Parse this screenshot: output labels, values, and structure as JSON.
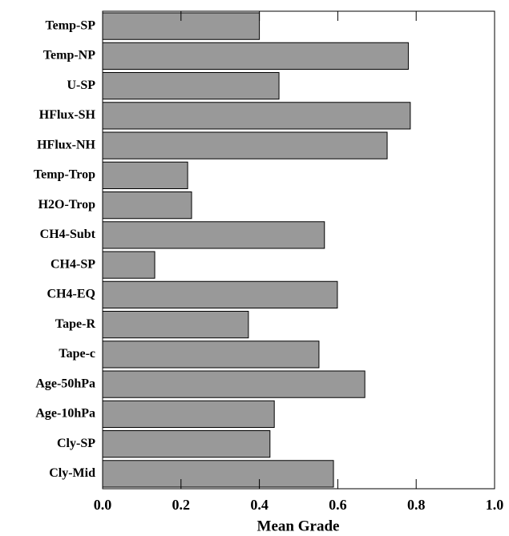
{
  "chart_data": {
    "type": "bar",
    "orientation": "horizontal",
    "xlabel": "Mean Grade",
    "categories": [
      "Temp-SP",
      "Temp-NP",
      "U-SP",
      "HFlux-SH",
      "HFlux-NH",
      "Temp-Trop",
      "H2O-Trop",
      "CH4-Subt",
      "CH4-SP",
      "CH4-EQ",
      "Tape-R",
      "Tape-c",
      "Age-50hPa",
      "Age-10hPa",
      "Cly-SP",
      "Cly-Mid"
    ],
    "values": [
      0.4,
      0.78,
      0.45,
      0.785,
      0.726,
      0.217,
      0.227,
      0.566,
      0.133,
      0.599,
      0.372,
      0.552,
      0.669,
      0.438,
      0.427,
      0.589
    ],
    "color": "#999999",
    "xlim": [
      0,
      1
    ],
    "xticks": [
      {
        "value": 0,
        "label": "0.0"
      },
      0.2,
      0.4,
      0.6,
      0.8,
      {
        "value": 1,
        "label": "1.0"
      }
    ]
  }
}
